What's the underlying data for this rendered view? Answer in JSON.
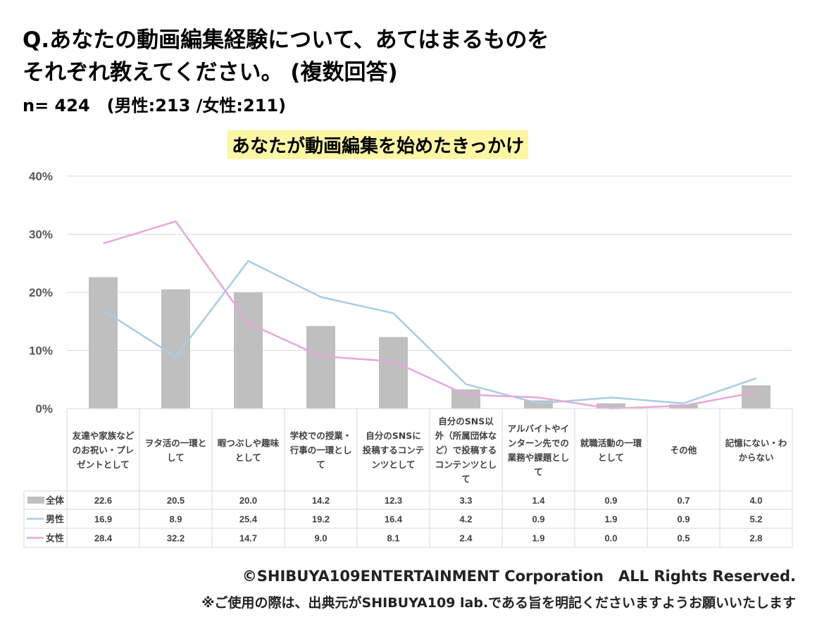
{
  "header": {
    "question_line1": "Q.あなたの動画編集経験について、あてはまるものを",
    "question_line2": "それぞれ教えてください。 (複数回答)",
    "sample": "n= 424　(男性:213 /女性:211)"
  },
  "footer": {
    "copyright": "©SHIBUYA109ENTERTAINMENT Corporation　ALL Rights Reserved.",
    "notice": "※ご使用の際は、出典元がSHIBUYA109 lab.である旨を明記くださいますようお願いいたします"
  },
  "colors": {
    "bar": "#bfbfbf",
    "male": "#a9cce3",
    "female": "#e8a8d8",
    "grid": "#d9d9d9",
    "title_bg": "#fcf6a5"
  },
  "chart_data": {
    "type": "bar",
    "title": "あなたが動画編集を始めたきっかけ",
    "ylim": [
      0,
      40
    ],
    "yticks": [
      "0%",
      "10%",
      "20%",
      "30%",
      "40%"
    ],
    "grid": true,
    "legend": "data-table",
    "categories": [
      [
        "友達や家族など",
        "のお祝い・プレ",
        "ゼントとして"
      ],
      [
        "ヲタ活の一環と",
        "して"
      ],
      [
        "暇つぶしや趣味",
        "として"
      ],
      [
        "学校での授業・",
        "行事の一環とし",
        "て"
      ],
      [
        "自分のSNSに",
        "投稿するコンテ",
        "ンツとして"
      ],
      [
        "自分のSNS以",
        "外（所属団体な",
        "ど）で投稿する",
        "コンテンツとし",
        "て"
      ],
      [
        "アルバイトやイ",
        "ンターン先での",
        "業務や課題とし",
        "て"
      ],
      [
        "就職活動の一環",
        "として"
      ],
      [
        "その他"
      ],
      [
        "記憶にない・わ",
        "からない"
      ]
    ],
    "series": [
      {
        "name": "全体",
        "kind": "bar",
        "values": [
          "22.6",
          "20.5",
          "20.0",
          "14.2",
          "12.3",
          "3.3",
          "1.4",
          "0.9",
          "0.7",
          "4.0"
        ]
      },
      {
        "name": "男性",
        "kind": "line",
        "values": [
          "16.9",
          "8.9",
          "25.4",
          "19.2",
          "16.4",
          "4.2",
          "0.9",
          "1.9",
          "0.9",
          "5.2"
        ]
      },
      {
        "name": "女性",
        "kind": "line",
        "values": [
          "28.4",
          "32.2",
          "14.7",
          "9.0",
          "8.1",
          "2.4",
          "1.9",
          "0.0",
          "0.5",
          "2.8"
        ]
      }
    ]
  }
}
